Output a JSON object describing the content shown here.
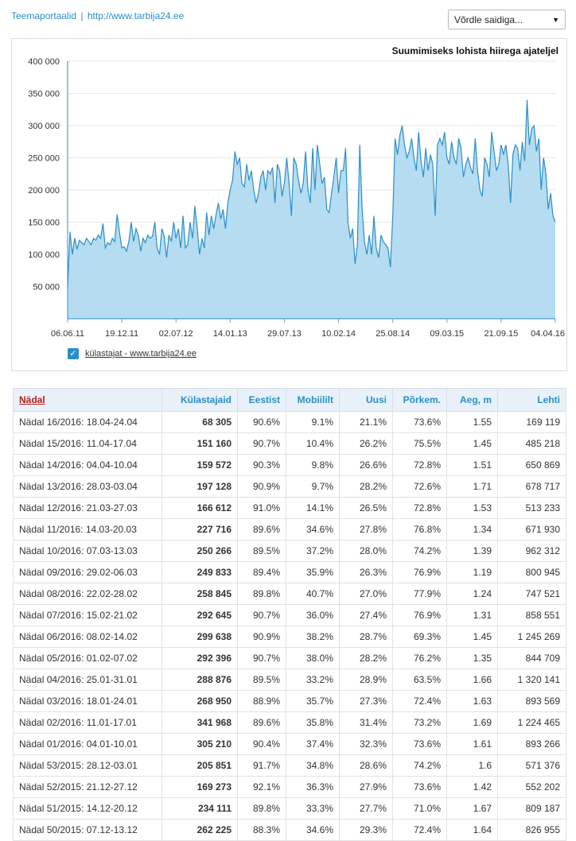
{
  "header": {
    "portal_link": "Teemaportaalid",
    "separator": "|",
    "site_link": "http://www.tarbija24.ee",
    "compare_select": "Võrdle saidiga..."
  },
  "chart": {
    "hint": "Suumimiseks lohista hiirega ajateljel",
    "legend_label": "külastajat - www.tarbija24.ee"
  },
  "chart_data": {
    "type": "area",
    "ylim": [
      0,
      400000
    ],
    "yticks": [
      "50 000",
      "100 000",
      "150 000",
      "200 000",
      "250 000",
      "300 000",
      "350 000",
      "400 000"
    ],
    "ytick_values": [
      50000,
      100000,
      150000,
      200000,
      250000,
      300000,
      350000,
      400000
    ],
    "xticks": [
      "06.06.11",
      "19.12.11",
      "02.07.12",
      "14.01.13",
      "29.07.13",
      "10.02.14",
      "25.08.14",
      "09.03.15",
      "21.09.15",
      "04.04.16"
    ],
    "grid": true,
    "series": [
      {
        "name": "külastajat - www.tarbija24.ee",
        "values": [
          50000,
          135000,
          100000,
          125000,
          108000,
          122000,
          118000,
          115000,
          125000,
          120000,
          115000,
          125000,
          122000,
          130000,
          125000,
          148000,
          110000,
          118000,
          115000,
          125000,
          120000,
          162000,
          135000,
          110000,
          112000,
          105000,
          120000,
          150000,
          120000,
          140000,
          130000,
          105000,
          125000,
          118000,
          130000,
          125000,
          128000,
          150000,
          110000,
          100000,
          140000,
          128000,
          95000,
          130000,
          120000,
          150000,
          125000,
          140000,
          110000,
          160000,
          110000,
          115000,
          150000,
          125000,
          175000,
          140000,
          100000,
          125000,
          110000,
          165000,
          130000,
          160000,
          140000,
          162000,
          180000,
          155000,
          170000,
          140000,
          180000,
          200000,
          215000,
          260000,
          240000,
          250000,
          210000,
          205000,
          240000,
          215000,
          230000,
          200000,
          180000,
          195000,
          220000,
          230000,
          200000,
          230000,
          225000,
          235000,
          180000,
          240000,
          230000,
          190000,
          210000,
          250000,
          210000,
          160000,
          250000,
          240000,
          215000,
          195000,
          210000,
          260000,
          200000,
          180000,
          265000,
          200000,
          270000,
          240000,
          210000,
          220000,
          170000,
          165000,
          195000,
          220000,
          250000,
          195000,
          230000,
          230000,
          265000,
          150000,
          125000,
          140000,
          85000,
          115000,
          270000,
          170000,
          120000,
          100000,
          130000,
          100000,
          160000,
          110000,
          95000,
          130000,
          120000,
          115000,
          110000,
          80000,
          160000,
          280000,
          255000,
          285000,
          300000,
          270000,
          250000,
          260000,
          280000,
          250000,
          230000,
          290000,
          245000,
          220000,
          265000,
          230000,
          255000,
          240000,
          160000,
          270000,
          280000,
          270000,
          290000,
          250000,
          240000,
          275000,
          250000,
          240000,
          280000,
          265000,
          220000,
          240000,
          250000,
          235000,
          225000,
          280000,
          230000,
          200000,
          190000,
          250000,
          240000,
          220000,
          290000,
          260000,
          230000,
          240000,
          270000,
          255000,
          270000,
          240000,
          180000,
          255000,
          270000,
          265000,
          230000,
          275000,
          245000,
          340000,
          270000,
          295000,
          300000,
          260000,
          280000,
          200000,
          250000,
          225000,
          170000,
          195000,
          160000,
          150000
        ]
      }
    ]
  },
  "table": {
    "headers": [
      "Nädal",
      "Külastajaid",
      "Eestist",
      "Mobiililt",
      "Uusi",
      "Põrkem.",
      "Aeg, m",
      "Lehti"
    ],
    "rows": [
      [
        "Nädal 16/2016: 18.04-24.04",
        "68 305",
        "90.6%",
        "9.1%",
        "21.1%",
        "73.6%",
        "1.55",
        "169 119"
      ],
      [
        "Nädal 15/2016: 11.04-17.04",
        "151 160",
        "90.7%",
        "10.4%",
        "26.2%",
        "75.5%",
        "1.45",
        "485 218"
      ],
      [
        "Nädal 14/2016: 04.04-10.04",
        "159 572",
        "90.3%",
        "9.8%",
        "26.6%",
        "72.8%",
        "1.51",
        "650 869"
      ],
      [
        "Nädal 13/2016: 28.03-03.04",
        "197 128",
        "90.9%",
        "9.7%",
        "28.2%",
        "72.6%",
        "1.71",
        "678 717"
      ],
      [
        "Nädal 12/2016: 21.03-27.03",
        "166 612",
        "91.0%",
        "14.1%",
        "26.5%",
        "72.8%",
        "1.53",
        "513 233"
      ],
      [
        "Nädal 11/2016: 14.03-20.03",
        "227 716",
        "89.6%",
        "34.6%",
        "27.8%",
        "76.8%",
        "1.34",
        "671 930"
      ],
      [
        "Nädal 10/2016: 07.03-13.03",
        "250 266",
        "89.5%",
        "37.2%",
        "28.0%",
        "74.2%",
        "1.39",
        "962 312"
      ],
      [
        "Nädal 09/2016: 29.02-06.03",
        "249 833",
        "89.4%",
        "35.9%",
        "26.3%",
        "76.9%",
        "1.19",
        "800 945"
      ],
      [
        "Nädal 08/2016: 22.02-28.02",
        "258 845",
        "89.8%",
        "40.7%",
        "27.0%",
        "77.9%",
        "1.24",
        "747 521"
      ],
      [
        "Nädal 07/2016: 15.02-21.02",
        "292 645",
        "90.7%",
        "36.0%",
        "27.4%",
        "76.9%",
        "1.31",
        "858 551"
      ],
      [
        "Nädal 06/2016: 08.02-14.02",
        "299 638",
        "90.9%",
        "38.2%",
        "28.7%",
        "69.3%",
        "1.45",
        "1 245 269"
      ],
      [
        "Nädal 05/2016: 01.02-07.02",
        "292 396",
        "90.7%",
        "38.0%",
        "28.2%",
        "76.2%",
        "1.35",
        "844 709"
      ],
      [
        "Nädal 04/2016: 25.01-31.01",
        "288 876",
        "89.5%",
        "33.2%",
        "28.9%",
        "63.5%",
        "1.66",
        "1 320 141"
      ],
      [
        "Nädal 03/2016: 18.01-24.01",
        "268 950",
        "88.9%",
        "35.7%",
        "27.3%",
        "72.4%",
        "1.63",
        "893 569"
      ],
      [
        "Nädal 02/2016: 11.01-17.01",
        "341 968",
        "89.6%",
        "35.8%",
        "31.4%",
        "73.2%",
        "1.69",
        "1 224 465"
      ],
      [
        "Nädal 01/2016: 04.01-10.01",
        "305 210",
        "90.4%",
        "37.4%",
        "32.3%",
        "73.6%",
        "1.61",
        "893 266"
      ],
      [
        "Nädal 53/2015: 28.12-03.01",
        "205 851",
        "91.7%",
        "34.8%",
        "28.6%",
        "74.2%",
        "1.6",
        "571 376"
      ],
      [
        "Nädal 52/2015: 21.12-27.12",
        "169 273",
        "92.1%",
        "36.3%",
        "27.9%",
        "73.6%",
        "1.42",
        "552 202"
      ],
      [
        "Nädal 51/2015: 14.12-20.12",
        "234 111",
        "89.8%",
        "33.3%",
        "27.7%",
        "71.0%",
        "1.67",
        "809 187"
      ],
      [
        "Nädal 50/2015: 07.12-13.12",
        "262 225",
        "88.3%",
        "34.6%",
        "29.3%",
        "72.4%",
        "1.64",
        "826 955"
      ]
    ]
  },
  "colors": {
    "accent": "#2a8fc7",
    "area_fill": "#b5dcf1",
    "sort_header": "#b3201a"
  }
}
